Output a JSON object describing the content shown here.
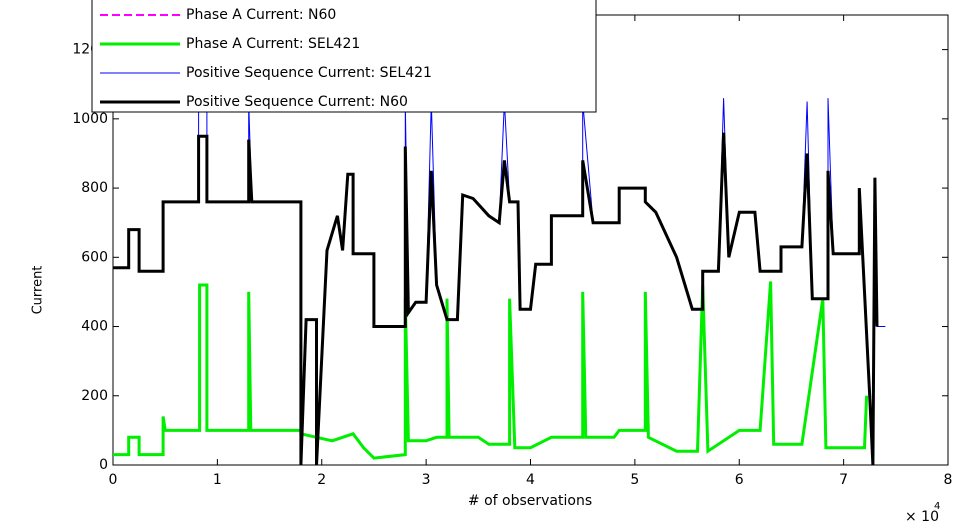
{
  "chart_data": {
    "type": "line",
    "x_label": "# of observations",
    "y_label": "Current",
    "x_multiplier": "× 10",
    "x_exponent": "4",
    "xlim": [
      0,
      80000
    ],
    "xticks": [
      0,
      {
        "value": 10000,
        "label": "1"
      },
      {
        "value": 20000,
        "label": "2"
      },
      {
        "value": 30000,
        "label": "3"
      },
      {
        "value": 40000,
        "label": "4"
      },
      {
        "value": 50000,
        "label": "5"
      },
      {
        "value": 60000,
        "label": "6"
      },
      {
        "value": 70000,
        "label": "7"
      },
      {
        "value": 80000,
        "label": "8"
      }
    ],
    "ylim": [
      0,
      1300
    ],
    "yticks": [
      0,
      200,
      400,
      600,
      800,
      1000,
      1200
    ],
    "series": [
      {
        "name": "Phase A Current: N60",
        "color": "#ff00ff",
        "dashed": true,
        "x": [
          0,
          1500,
          1500,
          2500,
          2500,
          4800,
          4800,
          5000,
          8300,
          8300,
          9000,
          9000,
          13000,
          13000,
          13200,
          18000,
          18000,
          21000,
          23000,
          24000,
          25000,
          28000,
          28000,
          28300,
          30000,
          31000,
          32000,
          32000,
          32200,
          35000,
          36000,
          38000,
          38000,
          38500,
          40000,
          42000,
          45000,
          45000,
          45300,
          48000,
          48500,
          51000,
          51000,
          51300,
          54000,
          56000,
          56500,
          57000,
          60000,
          62000,
          63000,
          63300,
          66000,
          68000,
          68300,
          72000,
          72200
        ],
        "values": [
          30,
          30,
          80,
          80,
          30,
          30,
          140,
          100,
          100,
          520,
          520,
          100,
          100,
          500,
          100,
          100,
          90,
          70,
          90,
          50,
          20,
          30,
          480,
          70,
          70,
          80,
          80,
          480,
          80,
          80,
          60,
          60,
          480,
          50,
          50,
          80,
          80,
          500,
          80,
          80,
          100,
          100,
          500,
          80,
          40,
          40,
          520,
          40,
          100,
          100,
          530,
          60,
          60,
          480,
          50,
          50,
          200
        ]
      },
      {
        "name": "Phase A Current: SEL421",
        "color": "#00ee00",
        "dashed": false,
        "x": [
          0,
          1500,
          1500,
          2500,
          2500,
          4800,
          4800,
          5000,
          8300,
          8300,
          9000,
          9000,
          13000,
          13000,
          13200,
          18000,
          18000,
          21000,
          23000,
          24000,
          25000,
          28000,
          28000,
          28300,
          30000,
          31000,
          32000,
          32000,
          32200,
          35000,
          36000,
          38000,
          38000,
          38500,
          40000,
          42000,
          45000,
          45000,
          45300,
          48000,
          48500,
          51000,
          51000,
          51300,
          54000,
          56000,
          56500,
          57000,
          60000,
          62000,
          63000,
          63300,
          66000,
          68000,
          68300,
          72000,
          72200
        ],
        "values": [
          30,
          30,
          80,
          80,
          30,
          30,
          140,
          100,
          100,
          520,
          520,
          100,
          100,
          500,
          100,
          100,
          90,
          70,
          90,
          50,
          20,
          30,
          480,
          70,
          70,
          80,
          80,
          480,
          80,
          80,
          60,
          60,
          480,
          50,
          50,
          80,
          80,
          500,
          80,
          80,
          100,
          100,
          500,
          80,
          40,
          40,
          520,
          40,
          100,
          100,
          530,
          60,
          60,
          480,
          50,
          50,
          200
        ]
      },
      {
        "name": "Positive Sequence Current: SEL421",
        "color": "#0000ff",
        "dashed": false,
        "x": [
          0,
          1500,
          1500,
          2500,
          2500,
          4800,
          4800,
          8200,
          8200,
          9000,
          9000,
          13000,
          13000,
          13300,
          18000,
          18000,
          18500,
          19500,
          19500,
          20500,
          21500,
          22000,
          22500,
          23000,
          23000,
          25000,
          25000,
          28000,
          28000,
          28300,
          29000,
          30000,
          30500,
          31000,
          32000,
          33000,
          33500,
          34500,
          36000,
          37000,
          37500,
          38000,
          38800,
          39000,
          40000,
          40500,
          42000,
          42000,
          45000,
          45000,
          46000,
          48500,
          48500,
          51000,
          51000,
          52000,
          54000,
          55500,
          56500,
          56500,
          58000,
          58500,
          59000,
          60000,
          61500,
          62000,
          64000,
          64000,
          66000,
          66500,
          67000,
          68500,
          68500,
          69000,
          71500,
          71500,
          72500,
          72800,
          73000,
          73200,
          74000
        ],
        "values": [
          570,
          570,
          680,
          680,
          560,
          560,
          760,
          760,
          1050,
          1050,
          760,
          760,
          1050,
          760,
          760,
          0,
          420,
          420,
          0,
          620,
          720,
          620,
          840,
          840,
          610,
          610,
          400,
          400,
          1050,
          440,
          470,
          470,
          1050,
          520,
          420,
          420,
          780,
          770,
          720,
          700,
          1050,
          760,
          760,
          450,
          450,
          580,
          580,
          720,
          720,
          1050,
          700,
          700,
          800,
          800,
          760,
          730,
          600,
          450,
          450,
          560,
          560,
          1060,
          600,
          730,
          730,
          560,
          560,
          630,
          630,
          1050,
          480,
          480,
          1060,
          610,
          610,
          800,
          200,
          0,
          830,
          400,
          400
        ]
      },
      {
        "name": "Positive Sequence Current: N60",
        "color": "#000000",
        "dashed": false,
        "x": [
          0,
          1500,
          1500,
          2500,
          2500,
          4800,
          4800,
          8200,
          8200,
          9000,
          9000,
          13000,
          13000,
          13300,
          18000,
          18000,
          18500,
          19500,
          19500,
          20500,
          21500,
          22000,
          22500,
          23000,
          23000,
          25000,
          25000,
          28000,
          28000,
          28300,
          29000,
          30000,
          30500,
          31000,
          32000,
          33000,
          33500,
          34500,
          36000,
          37000,
          37500,
          38000,
          38800,
          39000,
          40000,
          40500,
          42000,
          42000,
          45000,
          45000,
          46000,
          48500,
          48500,
          51000,
          51000,
          52000,
          54000,
          55500,
          56500,
          56500,
          58000,
          58500,
          59000,
          60000,
          61500,
          62000,
          64000,
          64000,
          66000,
          66500,
          67000,
          68500,
          68500,
          69000,
          71500,
          71500,
          72500,
          72800,
          73000,
          73200
        ],
        "values": [
          570,
          570,
          680,
          680,
          560,
          560,
          760,
          760,
          950,
          950,
          760,
          760,
          940,
          760,
          760,
          0,
          420,
          420,
          0,
          620,
          720,
          620,
          840,
          840,
          610,
          610,
          400,
          400,
          920,
          440,
          470,
          470,
          850,
          520,
          420,
          420,
          780,
          770,
          720,
          700,
          880,
          760,
          760,
          450,
          450,
          580,
          580,
          720,
          720,
          880,
          700,
          700,
          800,
          800,
          760,
          730,
          600,
          450,
          450,
          560,
          560,
          960,
          600,
          730,
          730,
          560,
          560,
          630,
          630,
          900,
          480,
          480,
          850,
          610,
          610,
          800,
          200,
          0,
          830,
          400
        ]
      }
    ]
  }
}
